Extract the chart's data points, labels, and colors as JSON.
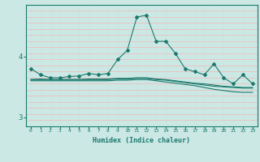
{
  "xlabel": "Humidex (Indice chaleur)",
  "x": [
    0,
    1,
    2,
    3,
    4,
    5,
    6,
    7,
    8,
    9,
    10,
    11,
    12,
    13,
    14,
    15,
    16,
    17,
    18,
    19,
    20,
    21,
    22,
    23
  ],
  "line1": [
    3.8,
    3.7,
    3.65,
    3.65,
    3.67,
    3.68,
    3.72,
    3.7,
    3.72,
    3.95,
    4.1,
    4.65,
    4.68,
    4.25,
    4.25,
    4.05,
    3.8,
    3.75,
    3.7,
    3.88,
    3.65,
    3.55,
    3.7,
    3.55
  ],
  "line2": [
    3.62,
    3.63,
    3.62,
    3.62,
    3.62,
    3.62,
    3.63,
    3.63,
    3.63,
    3.64,
    3.64,
    3.65,
    3.65,
    3.63,
    3.62,
    3.6,
    3.58,
    3.56,
    3.55,
    3.53,
    3.51,
    3.5,
    3.49,
    3.49
  ],
  "line3": [
    3.62,
    3.62,
    3.62,
    3.62,
    3.62,
    3.62,
    3.62,
    3.62,
    3.62,
    3.63,
    3.63,
    3.64,
    3.64,
    3.62,
    3.61,
    3.59,
    3.57,
    3.55,
    3.53,
    3.51,
    3.5,
    3.49,
    3.48,
    3.48
  ],
  "line4": [
    3.6,
    3.6,
    3.6,
    3.6,
    3.6,
    3.6,
    3.6,
    3.6,
    3.6,
    3.61,
    3.61,
    3.62,
    3.62,
    3.6,
    3.58,
    3.56,
    3.54,
    3.52,
    3.49,
    3.46,
    3.44,
    3.42,
    3.41,
    3.41
  ],
  "color": "#1a7a6e",
  "bg_color": "#cce8e4",
  "grid_color_v": "#c8e4e0",
  "grid_color_h": "#f0b8b8",
  "ylim": [
    2.85,
    4.85
  ],
  "yticks": [
    3.0,
    4.0
  ],
  "xlim": [
    -0.5,
    23.5
  ]
}
